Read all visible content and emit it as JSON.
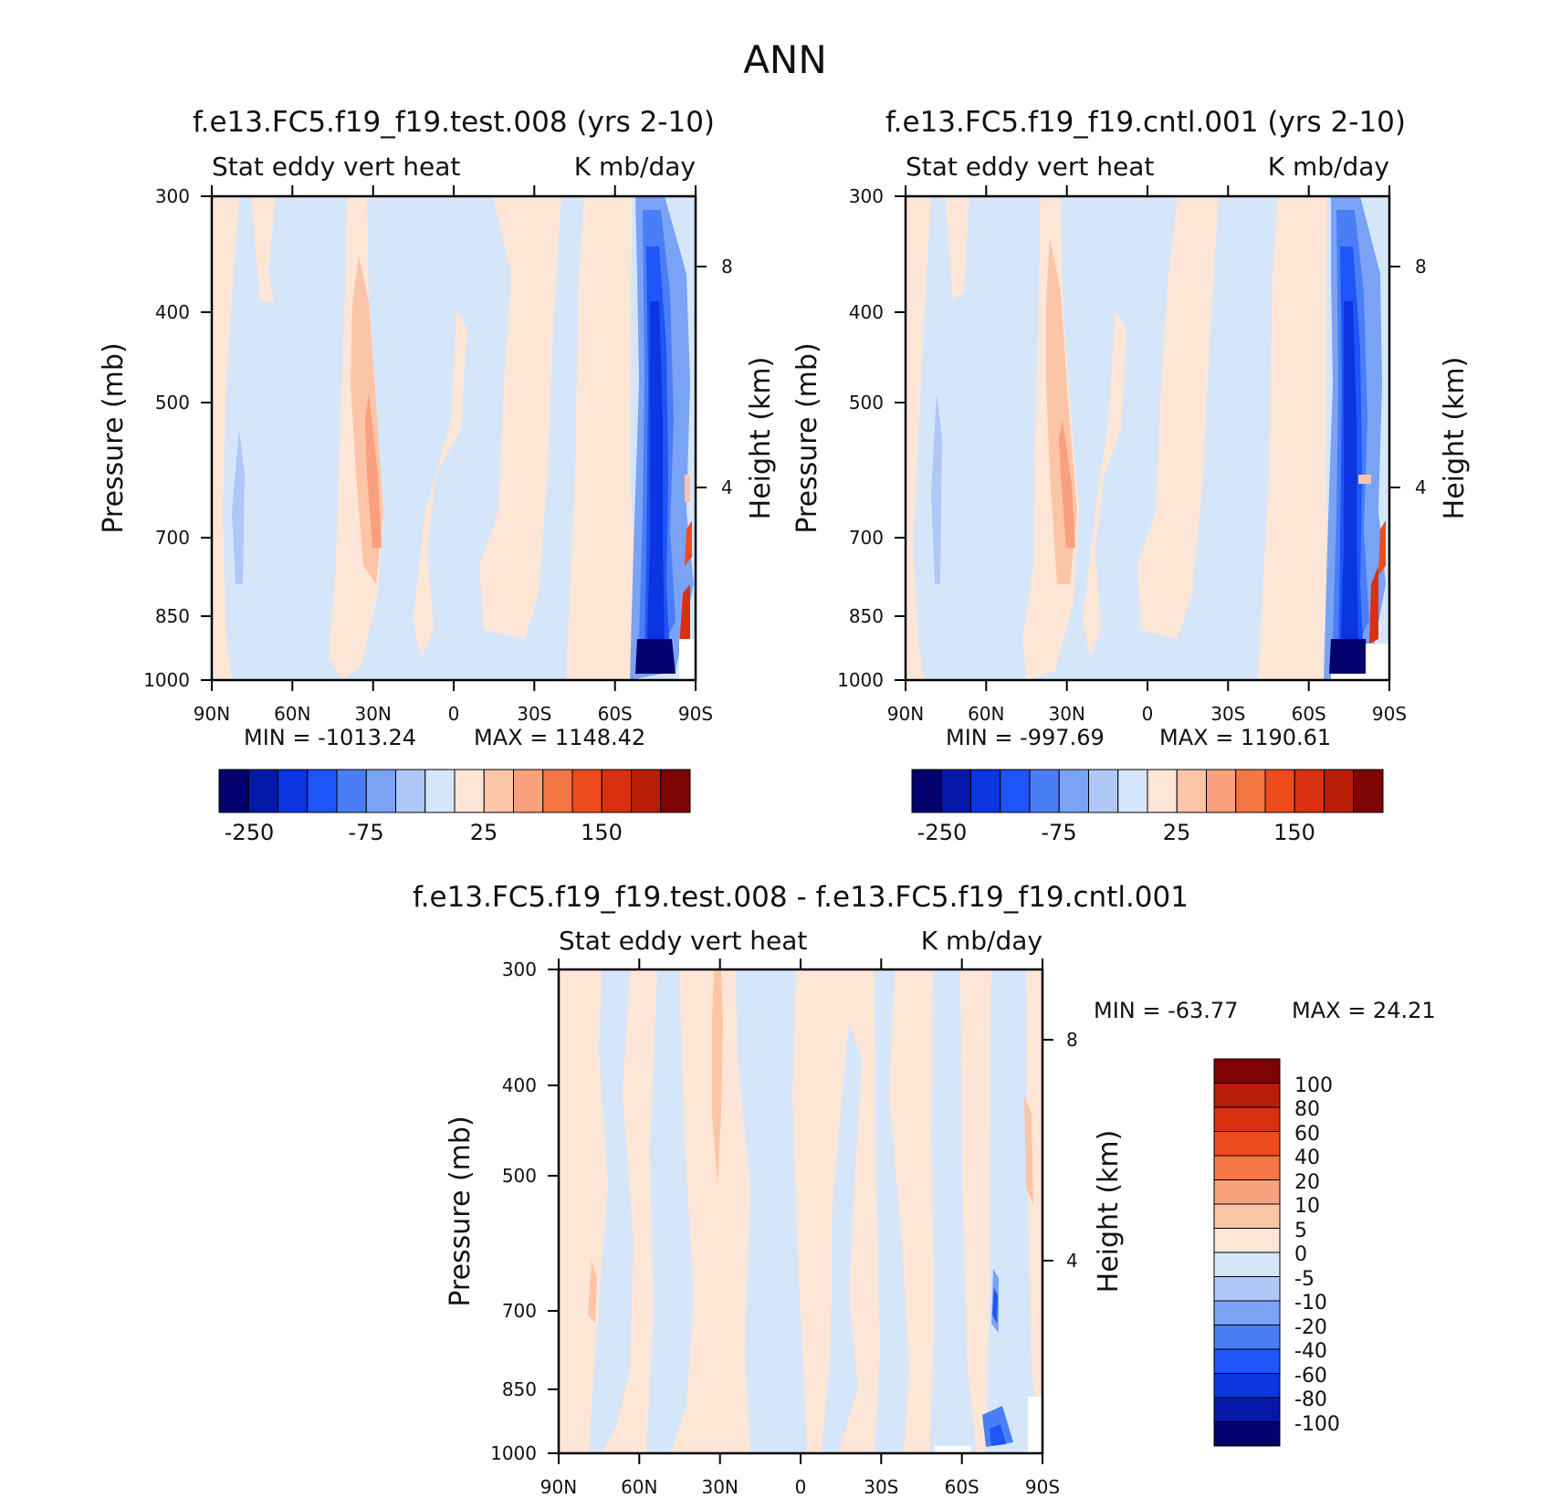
{
  "page_title": "ANN",
  "chart_data": [
    {
      "type": "contour",
      "id": "test",
      "title": "f.e13.FC5.f19_f19.test.008 (yrs 2-10)",
      "subtitle_left": "Stat eddy vert heat",
      "subtitle_right": "K mb/day",
      "xlabel": "",
      "ylabel": "Pressure (mb)",
      "y2label": "Height (km)",
      "xticks": [
        "90N",
        "60N",
        "30N",
        "0",
        "30S",
        "60S",
        "90S"
      ],
      "yticks": [
        "300",
        "400",
        "500",
        "700",
        "850",
        "1000"
      ],
      "y2ticks": [
        "8",
        "4"
      ],
      "min_label": "MIN = -1013.24",
      "max_label": "MAX = 1148.42",
      "min": -1013.24,
      "max": 1148.42,
      "colorbar_ticks": [
        "-250",
        "-75",
        "25",
        "150"
      ]
    },
    {
      "type": "contour",
      "id": "cntl",
      "title": "f.e13.FC5.f19_f19.cntl.001 (yrs 2-10)",
      "subtitle_left": "Stat eddy vert heat",
      "subtitle_right": "K mb/day",
      "xlabel": "",
      "ylabel": "Pressure (mb)",
      "y2label": "Height (km)",
      "xticks": [
        "90N",
        "60N",
        "30N",
        "0",
        "30S",
        "60S",
        "90S"
      ],
      "yticks": [
        "300",
        "400",
        "500",
        "700",
        "850",
        "1000"
      ],
      "y2ticks": [
        "8",
        "4"
      ],
      "min_label": "MIN = -997.69",
      "max_label": "MAX = 1190.61",
      "min": -997.69,
      "max": 1190.61,
      "colorbar_ticks": [
        "-250",
        "-75",
        "25",
        "150"
      ]
    },
    {
      "type": "contour",
      "id": "diff",
      "title": "f.e13.FC5.f19_f19.test.008 - f.e13.FC5.f19_f19.cntl.001",
      "subtitle_left": "Stat eddy vert heat",
      "subtitle_right": "K mb/day",
      "xlabel": "",
      "ylabel": "Pressure (mb)",
      "y2label": "Height (km)",
      "xticks": [
        "90N",
        "60N",
        "30N",
        "0",
        "30S",
        "60S",
        "90S"
      ],
      "yticks": [
        "300",
        "400",
        "500",
        "700",
        "850",
        "1000"
      ],
      "y2ticks": [
        "8",
        "4"
      ],
      "min_label": "MIN = -63.77",
      "max_label": "MAX = 24.21",
      "min": -63.77,
      "max": 24.21,
      "colorbar_ticks": [
        "100",
        "80",
        "60",
        "40",
        "20",
        "10",
        "5",
        "0",
        "-5",
        "-10",
        "-20",
        "-40",
        "-60",
        "-80",
        "-100"
      ]
    }
  ],
  "colormap": [
    "#04006e",
    "#0419a8",
    "#0a35e0",
    "#1e55f8",
    "#4a7ef6",
    "#7aa3f6",
    "#b0c8f8",
    "#d6e6fa",
    "#fde6d6",
    "#fcc5a8",
    "#f9a07c",
    "#f57645",
    "#ee4b1e",
    "#d93110",
    "#b91d06",
    "#7e0404"
  ],
  "colors": {
    "light_blue": "#d6e6fa",
    "light_orange": "#fde6d6"
  }
}
